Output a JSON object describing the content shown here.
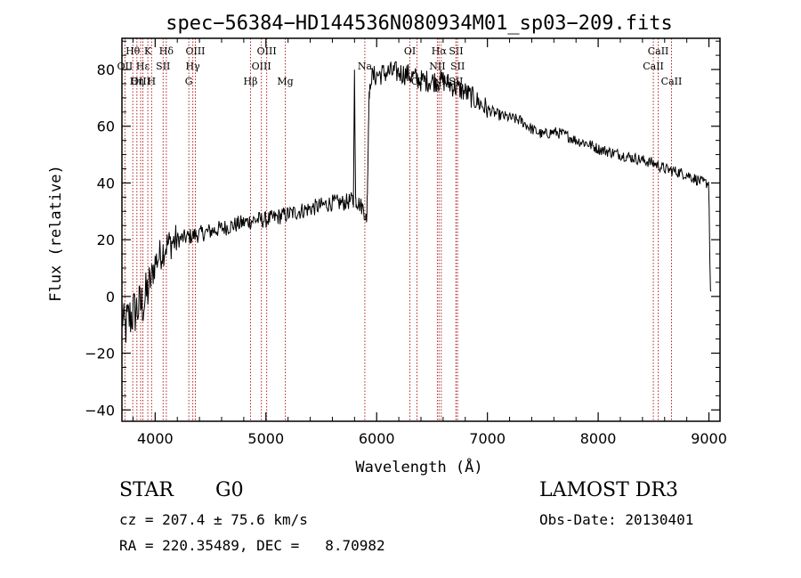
{
  "chart_data": {
    "type": "line",
    "title": "spec−56384−HD144536N080934M01_sp03−209.fits",
    "xlabel": "Wavelength (Å)",
    "ylabel": "Flux (relative)",
    "xlim": [
      3700,
      9100
    ],
    "ylim": [
      -44,
      91
    ],
    "x_ticks": [
      4000,
      5000,
      6000,
      7000,
      8000,
      9000
    ],
    "y_ticks": [
      -40,
      -20,
      0,
      20,
      40,
      60,
      80
    ],
    "x_tick_labels": [
      "4000",
      "5000",
      "6000",
      "7000",
      "8000",
      "9000"
    ],
    "y_tick_labels": [
      "−40",
      "−20",
      "0",
      "20",
      "40",
      "60",
      "80"
    ],
    "series": [
      {
        "name": "flux",
        "anchors": [
          [
            3700,
            -5
          ],
          [
            3720,
            -12
          ],
          [
            3760,
            -8
          ],
          [
            3800,
            -6
          ],
          [
            3850,
            -4
          ],
          [
            3900,
            -2
          ],
          [
            3950,
            4
          ],
          [
            4000,
            12
          ],
          [
            4050,
            15
          ],
          [
            4100,
            18
          ],
          [
            4200,
            20
          ],
          [
            4300,
            21
          ],
          [
            4400,
            22
          ],
          [
            4500,
            23
          ],
          [
            4600,
            24
          ],
          [
            4700,
            25
          ],
          [
            4800,
            26
          ],
          [
            4900,
            27
          ],
          [
            5000,
            27
          ],
          [
            5100,
            28
          ],
          [
            5200,
            29
          ],
          [
            5300,
            30
          ],
          [
            5400,
            31
          ],
          [
            5500,
            32
          ],
          [
            5600,
            33
          ],
          [
            5700,
            33
          ],
          [
            5790,
            34
          ],
          [
            5800,
            79
          ],
          [
            5810,
            34
          ],
          [
            5880,
            31
          ],
          [
            5910,
            27
          ],
          [
            5920,
            45
          ],
          [
            5930,
            70
          ],
          [
            5950,
            77
          ],
          [
            6000,
            78
          ],
          [
            6100,
            79
          ],
          [
            6200,
            79
          ],
          [
            6300,
            78
          ],
          [
            6400,
            76
          ],
          [
            6500,
            76
          ],
          [
            6600,
            76
          ],
          [
            6700,
            74
          ],
          [
            6800,
            72
          ],
          [
            6900,
            69
          ],
          [
            7000,
            66
          ],
          [
            7100,
            64
          ],
          [
            7200,
            63
          ],
          [
            7300,
            62
          ],
          [
            7400,
            59
          ],
          [
            7500,
            57
          ],
          [
            7600,
            58
          ],
          [
            7700,
            57
          ],
          [
            7800,
            55
          ],
          [
            7900,
            54
          ],
          [
            8000,
            52
          ],
          [
            8100,
            51
          ],
          [
            8200,
            50
          ],
          [
            8300,
            49
          ],
          [
            8400,
            48
          ],
          [
            8500,
            47
          ],
          [
            8600,
            45
          ],
          [
            8700,
            44
          ],
          [
            8800,
            43
          ],
          [
            8900,
            41
          ],
          [
            8950,
            40
          ],
          [
            9000,
            40
          ],
          [
            9010,
            5
          ],
          [
            9020,
            0
          ]
        ]
      }
    ],
    "line_markers": [
      {
        "label": "Hθ",
        "x": 3798,
        "row": 0
      },
      {
        "label": "OII",
        "x": 3727,
        "row": 1
      },
      {
        "label": "OIII",
        "x": 3869,
        "row": 2
      },
      {
        "label": "Hε",
        "x": 3889,
        "row": 1
      },
      {
        "label": "Hη",
        "x": 3835,
        "row": 2
      },
      {
        "label": "K",
        "x": 3934,
        "row": 0
      },
      {
        "label": "H",
        "x": 3968,
        "row": 2
      },
      {
        "label": "Hδ",
        "x": 4101,
        "row": 0
      },
      {
        "label": "SII",
        "x": 4072,
        "row": 1
      },
      {
        "label": "OIII",
        "x": 4363,
        "row": 0
      },
      {
        "label": "Hγ",
        "x": 4340,
        "row": 1
      },
      {
        "label": "G",
        "x": 4304,
        "row": 2
      },
      {
        "label": "OIII",
        "x": 5007,
        "row": 0
      },
      {
        "label": "OIII",
        "x": 4959,
        "row": 1
      },
      {
        "label": "Hβ",
        "x": 4861,
        "row": 2
      },
      {
        "label": "Mg",
        "x": 5175,
        "row": 2
      },
      {
        "label": "Na",
        "x": 5893,
        "row": 1
      },
      {
        "label": "OI",
        "x": 6300,
        "row": 0
      },
      {
        "label": "OI",
        "x": 6364,
        "row": 2
      },
      {
        "label": "Hα",
        "x": 6563,
        "row": 0
      },
      {
        "label": "NII",
        "x": 6548,
        "row": 1
      },
      {
        "label": "NII",
        "x": 6583,
        "row": 2
      },
      {
        "label": "SII",
        "x": 6717,
        "row": 0
      },
      {
        "label": "SII",
        "x": 6731,
        "row": 1
      },
      {
        "label": "SII",
        "x": 6716,
        "row": 2
      },
      {
        "label": "CaII",
        "x": 8542,
        "row": 0
      },
      {
        "label": "CaII",
        "x": 8498,
        "row": 1
      },
      {
        "label": "CaII",
        "x": 8662,
        "row": 2
      }
    ],
    "colors": {
      "spectrum": "#000000",
      "markers": "#b22222",
      "axes": "#000000"
    }
  },
  "info": {
    "class_label": "STAR",
    "subclass": "G0",
    "survey": "LAMOST DR3",
    "redshift": "cz = 207.4 ± 75.6 km/s",
    "obs_date": "Obs-Date: 20130401",
    "coords": "RA = 220.35489, DEC =   8.70982"
  }
}
